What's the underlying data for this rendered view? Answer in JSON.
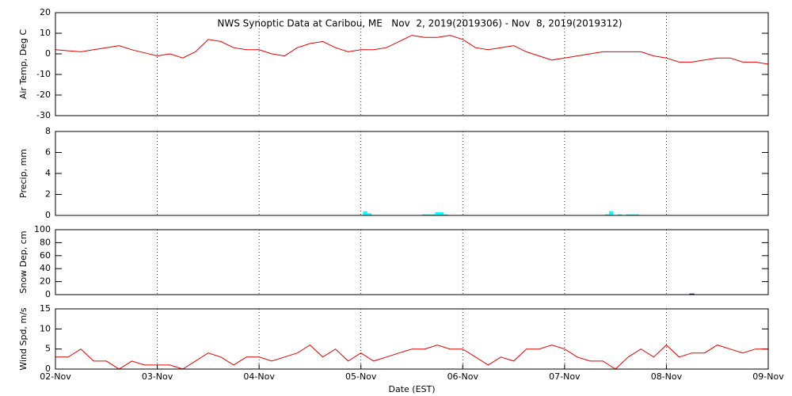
{
  "chart_data": [
    {
      "type": "line",
      "title": "NWS Synoptic Data at Caribou, ME   Nov  2, 2019(2019306) - Nov  8, 2019(2019312)",
      "ylabel": "Air Temp, Deg C",
      "ylim": [
        -30,
        20
      ],
      "yticks": [
        -30,
        -20,
        -10,
        0,
        10,
        20
      ],
      "color": "#e00000",
      "x": [
        0,
        3,
        6,
        9,
        12,
        15,
        18,
        21,
        24,
        27,
        30,
        33,
        36,
        39,
        42,
        45,
        48,
        51,
        54,
        57,
        60,
        63,
        66,
        69,
        72,
        75,
        78,
        81,
        84,
        87,
        90,
        93,
        96,
        99,
        102,
        105,
        108,
        111,
        114,
        117,
        120,
        123,
        126,
        129,
        132,
        135,
        138,
        141,
        144,
        147,
        150,
        153,
        156,
        159,
        162,
        165,
        168
      ],
      "values": [
        2,
        1.5,
        1,
        2,
        3,
        4,
        2,
        0.5,
        -1,
        0,
        -2,
        1,
        7,
        6,
        3,
        2,
        2,
        0,
        -1,
        3,
        5,
        6,
        3,
        1,
        2,
        2,
        3,
        6,
        9,
        8,
        8,
        9,
        7,
        3,
        2,
        3,
        4,
        1,
        -1,
        -3,
        -2,
        -1,
        0,
        1,
        1,
        1,
        1,
        -1,
        -2,
        -4,
        -4,
        -3,
        -2,
        -2,
        -4,
        -4,
        -5
      ]
    },
    {
      "type": "bar",
      "ylabel": "Precip, mm",
      "ylim": [
        0,
        8
      ],
      "yticks": [
        0,
        2,
        4,
        6,
        8
      ],
      "color": "#00ffff",
      "x": [
        73,
        74,
        87,
        88,
        89,
        90,
        91,
        92,
        130,
        131,
        133,
        135,
        136,
        137
      ],
      "values": [
        0.4,
        0.2,
        0.1,
        0.1,
        0.1,
        0.3,
        0.3,
        0.1,
        0.1,
        0.4,
        0.1,
        0.1,
        0.1,
        0.1
      ]
    },
    {
      "type": "outline-bar",
      "ylabel": "Snow Dep, cm",
      "ylim": [
        0,
        100
      ],
      "yticks": [
        0,
        20,
        40,
        60,
        80,
        100
      ],
      "color": "#000080",
      "x": [
        150
      ],
      "values": [
        1
      ]
    },
    {
      "type": "line",
      "ylabel": "Wind Spd, m/s",
      "ylim": [
        0,
        15
      ],
      "yticks": [
        0,
        5,
        10,
        15
      ],
      "color": "#e00000",
      "x": [
        0,
        3,
        6,
        9,
        12,
        15,
        18,
        21,
        24,
        27,
        30,
        33,
        36,
        39,
        42,
        45,
        48,
        51,
        54,
        57,
        60,
        63,
        66,
        69,
        72,
        75,
        78,
        81,
        84,
        87,
        90,
        93,
        96,
        99,
        102,
        105,
        108,
        111,
        114,
        117,
        120,
        123,
        126,
        129,
        132,
        135,
        138,
        141,
        144,
        147,
        150,
        153,
        156,
        159,
        162,
        165,
        168
      ],
      "values": [
        3,
        3,
        5,
        2,
        2,
        0,
        2,
        1,
        1,
        1,
        0,
        2,
        4,
        3,
        1,
        3,
        3,
        2,
        3,
        4,
        6,
        3,
        5,
        2,
        4,
        2,
        3,
        4,
        5,
        5,
        6,
        5,
        5,
        3,
        1,
        3,
        2,
        5,
        5,
        6,
        5,
        3,
        2,
        2,
        0,
        3,
        5,
        3,
        6,
        3,
        4,
        4,
        6,
        5,
        4,
        5,
        5
      ],
      "xlabel": "Date (EST)",
      "xlim": [
        0,
        168
      ],
      "xticks": [
        {
          "value": 0,
          "label": "02-Nov"
        },
        {
          "value": 24,
          "label": "03-Nov"
        },
        {
          "value": 48,
          "label": "04-Nov"
        },
        {
          "value": 72,
          "label": "05-Nov"
        },
        {
          "value": 96,
          "label": "06-Nov"
        },
        {
          "value": 120,
          "label": "07-Nov"
        },
        {
          "value": 144,
          "label": "08-Nov"
        },
        {
          "value": 168,
          "label": "09-Nov"
        }
      ]
    }
  ]
}
